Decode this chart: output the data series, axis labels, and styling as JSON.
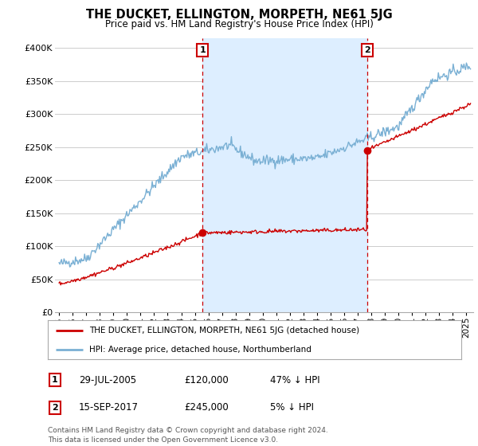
{
  "title": "THE DUCKET, ELLINGTON, MORPETH, NE61 5JG",
  "subtitle": "Price paid vs. HM Land Registry's House Price Index (HPI)",
  "ylabel_ticks": [
    "£0",
    "£50K",
    "£100K",
    "£150K",
    "£200K",
    "£250K",
    "£300K",
    "£350K",
    "£400K"
  ],
  "ylabel_values": [
    0,
    50000,
    100000,
    150000,
    200000,
    250000,
    300000,
    350000,
    400000
  ],
  "ylim": [
    0,
    415000
  ],
  "xlim_start": 1994.7,
  "xlim_end": 2025.5,
  "hpi_color": "#7ab0d4",
  "price_color": "#cc0000",
  "shade_color": "#ddeeff",
  "marker1_year": 2005.57,
  "marker1_price": 120000,
  "marker1_label": "1",
  "marker2_year": 2017.71,
  "marker2_price": 245000,
  "marker2_label": "2",
  "legend_line1": "THE DUCKET, ELLINGTON, MORPETH, NE61 5JG (detached house)",
  "legend_line2": "HPI: Average price, detached house, Northumberland",
  "table_row1_num": "1",
  "table_row1_date": "29-JUL-2005",
  "table_row1_price": "£120,000",
  "table_row1_hpi": "47% ↓ HPI",
  "table_row2_num": "2",
  "table_row2_date": "15-SEP-2017",
  "table_row2_price": "£245,000",
  "table_row2_hpi": "5% ↓ HPI",
  "footnote": "Contains HM Land Registry data © Crown copyright and database right 2024.\nThis data is licensed under the Open Government Licence v3.0.",
  "background_color": "#ffffff",
  "grid_color": "#cccccc"
}
